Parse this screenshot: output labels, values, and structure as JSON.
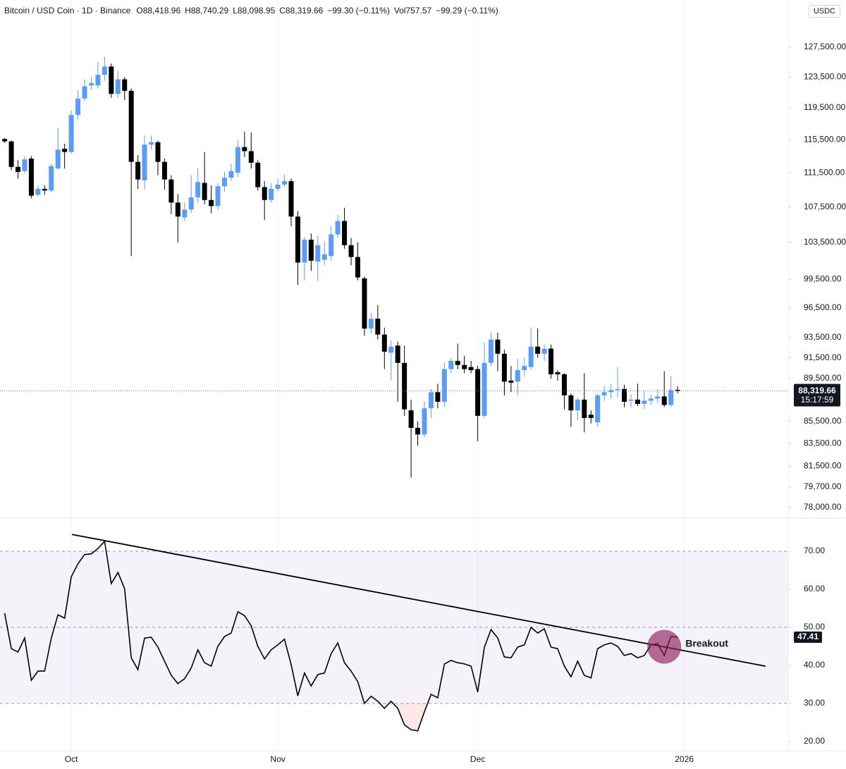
{
  "chart_data": [
    {
      "type": "candlestick",
      "header": [
        "Bitcoin / USD Coin · 1D · Binance",
        "O88,418.96",
        "H88,740.29",
        "L88,098.95",
        "C88,319.66",
        "−99.30 (−0.11%)",
        "Vol757.57",
        "−99.29 (−0.11%)"
      ],
      "currency": "USDC",
      "up_color": "#5b9cf6",
      "down_color": "#000000",
      "log_scale": true,
      "xlim": [
        -0.7,
        117.6
      ],
      "ylim": [
        77100,
        134100
      ],
      "yticks": [
        {
          "value": 127500,
          "label": "127,500.00"
        },
        {
          "value": 123500,
          "label": "123,500.00"
        },
        {
          "value": 119500,
          "label": "119,500.00"
        },
        {
          "value": 115500,
          "label": "115,500.00"
        },
        {
          "value": 111500,
          "label": "111,500.00"
        },
        {
          "value": 107500,
          "label": "107,500.00"
        },
        {
          "value": 103500,
          "label": "103,500.00"
        },
        {
          "value": 99500,
          "label": "99,500.00"
        },
        {
          "value": 96500,
          "label": "96,500.00"
        },
        {
          "value": 93500,
          "label": "93,500.00"
        },
        {
          "value": 91500,
          "label": "91,500.00"
        },
        {
          "value": 89500,
          "label": "89,500.00"
        },
        {
          "value": 85500,
          "label": "85,500.00"
        },
        {
          "value": 83500,
          "label": "83,500.00"
        },
        {
          "value": 81500,
          "label": "81,500.00"
        },
        {
          "value": 79700,
          "label": "79,700.00"
        },
        {
          "value": 78000,
          "label": "78,000.00"
        }
      ],
      "last_label": "88,319.66",
      "countdown": "15:17:59",
      "x": [
        0,
        1,
        2,
        3,
        4,
        5,
        6,
        7,
        8,
        9,
        10,
        11,
        12,
        13,
        14,
        15,
        16,
        17,
        18,
        19,
        20,
        21,
        22,
        23,
        24,
        25,
        26,
        27,
        28,
        29,
        30,
        31,
        32,
        33,
        34,
        35,
        36,
        37,
        38,
        39,
        40,
        41,
        42,
        43,
        44,
        45,
        46,
        47,
        48,
        49,
        50,
        51,
        52,
        53,
        54,
        55,
        56,
        57,
        58,
        59,
        60,
        61,
        62,
        63,
        64,
        65,
        66,
        67,
        68,
        69,
        70,
        71,
        72,
        73,
        74,
        75,
        76,
        77,
        78,
        79,
        80,
        81,
        82,
        83,
        84,
        85,
        86,
        87,
        88,
        89,
        90,
        91,
        92,
        93,
        94,
        95,
        96,
        97,
        98,
        99,
        100,
        101
      ],
      "open": [
        115600,
        115300,
        112200,
        111700,
        113200,
        108900,
        109600,
        109400,
        112000,
        114400,
        114000,
        118600,
        120700,
        122400,
        122400,
        123800,
        124900,
        121300,
        123200,
        121700,
        112800,
        110600,
        114900,
        115200,
        112800,
        110700,
        108000,
        106300,
        107200,
        108600,
        110300,
        108300,
        107600,
        109900,
        110900,
        111500,
        114600,
        114100,
        112700,
        109800,
        108300,
        109600,
        110100,
        110500,
        106400,
        101300,
        103800,
        101400,
        101600,
        102000,
        104400,
        105900,
        103200,
        101900,
        99600,
        94400,
        95400,
        93800,
        92000,
        92700,
        91000,
        86500,
        84900,
        84300,
        86700,
        88200,
        87300,
        90400,
        91200,
        90800,
        90600,
        90400,
        86000,
        91000,
        93300,
        91900,
        89300,
        89200,
        90300,
        90600,
        92600,
        91900,
        92400,
        90100,
        89900,
        87900,
        86500,
        87500,
        86100,
        85400,
        87900,
        88200,
        88400,
        88500,
        87400,
        87500,
        87100,
        87400,
        87600,
        87800,
        87000,
        88418.96
      ],
      "high": [
        115700,
        115400,
        113000,
        113500,
        113500,
        110000,
        110000,
        112600,
        117000,
        115000,
        119200,
        121800,
        123200,
        123500,
        125500,
        126200,
        125300,
        124300,
        123500,
        122000,
        113600,
        116000,
        116000,
        115400,
        113200,
        111200,
        109000,
        108000,
        111200,
        112000,
        114000,
        110000,
        110300,
        111600,
        112600,
        115500,
        116500,
        116400,
        113000,
        110500,
        110300,
        110800,
        111300,
        110800,
        107000,
        104100,
        104500,
        104300,
        103600,
        105300,
        106600,
        107400,
        104000,
        103500,
        99800,
        96000,
        96800,
        94500,
        93200,
        93100,
        92700,
        87500,
        85500,
        87300,
        88500,
        89000,
        91000,
        91500,
        92900,
        91700,
        91200,
        90700,
        93000,
        94000,
        94000,
        92300,
        90700,
        91400,
        91500,
        94500,
        94400,
        92800,
        92800,
        90300,
        90000,
        88100,
        87700,
        90000,
        86500,
        88100,
        88800,
        89000,
        90600,
        88900,
        88000,
        89000,
        88300,
        88000,
        88500,
        90200,
        89700,
        88740.29
      ],
      "low": [
        115100,
        111800,
        110800,
        111400,
        108500,
        108700,
        108900,
        109200,
        111900,
        112000,
        113800,
        118000,
        120400,
        121800,
        122000,
        123000,
        120800,
        120800,
        120500,
        102000,
        109600,
        109500,
        114300,
        111200,
        109500,
        106700,
        103500,
        105900,
        106800,
        108000,
        107800,
        106800,
        107200,
        109300,
        110500,
        111000,
        113400,
        112000,
        109400,
        106000,
        108000,
        109300,
        109800,
        105300,
        98900,
        99400,
        100400,
        99300,
        101000,
        101500,
        104000,
        102800,
        101000,
        99400,
        93700,
        93900,
        93300,
        90400,
        89300,
        87300,
        86000,
        80500,
        83300,
        84000,
        85800,
        86700,
        86800,
        90000,
        90400,
        90000,
        90000,
        83700,
        85800,
        90700,
        90200,
        87900,
        88200,
        87900,
        89700,
        90400,
        91500,
        91200,
        89500,
        89300,
        86600,
        85000,
        85600,
        84500,
        85300,
        85000,
        87400,
        87600,
        87700,
        86800,
        86800,
        86900,
        86600,
        87000,
        87200,
        86800,
        86800,
        88098.95
      ],
      "close": [
        115300,
        112200,
        111600,
        113100,
        108800,
        109600,
        109400,
        112300,
        114300,
        114000,
        118600,
        120700,
        122300,
        122700,
        123800,
        124900,
        121300,
        123200,
        121700,
        112800,
        110700,
        114900,
        115200,
        112800,
        110700,
        108000,
        106400,
        107200,
        108600,
        110400,
        108300,
        107600,
        109900,
        110900,
        111700,
        114600,
        114100,
        112700,
        109800,
        108300,
        109600,
        110100,
        110500,
        106400,
        101300,
        103800,
        101500,
        103200,
        102200,
        104400,
        105900,
        103200,
        101900,
        99700,
        94400,
        95400,
        93800,
        92100,
        92600,
        91000,
        86600,
        84900,
        84300,
        86700,
        88200,
        87300,
        90400,
        91200,
        90800,
        90400,
        90300,
        86000,
        91000,
        93300,
        91900,
        89200,
        89100,
        90300,
        90700,
        92600,
        91900,
        92400,
        89900,
        89900,
        87900,
        86500,
        87500,
        85800,
        85800,
        87900,
        88200,
        88400,
        88500,
        87300,
        87500,
        87100,
        87400,
        87600,
        87800,
        87000,
        88400,
        88319.66
      ]
    },
    {
      "type": "line",
      "color": "#000000",
      "xlim": [
        -0.7,
        117.6
      ],
      "ylim": [
        17.6,
        78.7
      ],
      "xticks": [
        {
          "value": 10,
          "label": "Oct"
        },
        {
          "value": 41,
          "label": "Nov"
        },
        {
          "value": 71,
          "label": "Dec"
        },
        {
          "value": 102,
          "label": "2026"
        }
      ],
      "yticks": [
        {
          "value": 70,
          "label": "70.00"
        },
        {
          "value": 60,
          "label": "60.00"
        },
        {
          "value": 50,
          "label": "50.00"
        },
        {
          "value": 40,
          "label": "40.00"
        },
        {
          "value": 30,
          "label": "30.00"
        },
        {
          "value": 20,
          "label": "20.00"
        }
      ],
      "levels": [
        30,
        50,
        70
      ],
      "last_label": "47.41",
      "x": [
        0,
        1,
        2,
        3,
        4,
        5,
        6,
        7,
        8,
        9,
        10,
        11,
        12,
        13,
        14,
        15,
        16,
        17,
        18,
        19,
        20,
        21,
        22,
        23,
        24,
        25,
        26,
        27,
        28,
        29,
        30,
        31,
        32,
        33,
        34,
        35,
        36,
        37,
        38,
        39,
        40,
        41,
        42,
        43,
        44,
        45,
        46,
        47,
        48,
        49,
        50,
        51,
        52,
        53,
        54,
        55,
        56,
        57,
        58,
        59,
        60,
        61,
        62,
        63,
        64,
        65,
        66,
        67,
        68,
        69,
        70,
        71,
        72,
        73,
        74,
        75,
        76,
        77,
        78,
        79,
        80,
        81,
        82,
        83,
        84,
        85,
        86,
        87,
        88,
        89,
        90,
        91,
        92,
        93,
        94,
        95,
        96,
        97,
        98,
        99,
        100,
        101
      ],
      "values": [
        53.7,
        44.4,
        43.5,
        47.2,
        36.1,
        38.5,
        38.5,
        47.2,
        53.3,
        52.4,
        63.3,
        66.7,
        69.1,
        69.3,
        70.7,
        72.6,
        61.5,
        64.4,
        60.2,
        42.0,
        38.9,
        47.2,
        47.4,
        44.8,
        41.1,
        37.4,
        35.2,
        36.5,
        39.3,
        44.1,
        40.7,
        39.8,
        45.0,
        47.6,
        48.5,
        54.1,
        53.1,
        50.4,
        45.0,
        41.7,
        44.1,
        45.4,
        46.9,
        40.2,
        32.0,
        38.0,
        34.6,
        37.6,
        38.0,
        43.1,
        45.9,
        40.7,
        38.5,
        35.7,
        30.0,
        31.9,
        30.6,
        28.7,
        30.6,
        28.7,
        24.4,
        23.1,
        22.8,
        27.8,
        32.4,
        31.5,
        40.4,
        41.3,
        40.7,
        40.4,
        39.8,
        33.0,
        44.8,
        49.4,
        47.2,
        42.2,
        42.0,
        44.8,
        45.4,
        50.0,
        48.5,
        49.6,
        44.8,
        44.4,
        39.8,
        37.0,
        41.1,
        37.4,
        36.7,
        44.4,
        45.4,
        45.9,
        45.0,
        42.6,
        43.1,
        42.0,
        42.6,
        45.4,
        45.7,
        42.6,
        47.6,
        47.41
      ],
      "trendline": {
        "x": [
          10.1,
          114.2
        ],
        "values": [
          74.4,
          39.8
        ]
      },
      "annotation": {
        "text": "Breakout",
        "x": 99,
        "value": 44.9
      }
    }
  ]
}
